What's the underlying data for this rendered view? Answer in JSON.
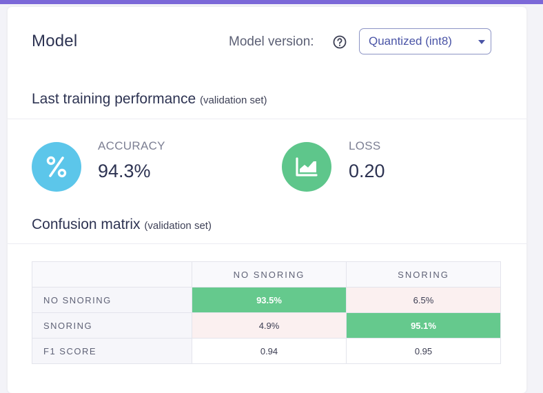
{
  "header": {
    "title": "Model",
    "version_label": "Model version:",
    "version_value": "Quantized (int8)"
  },
  "performance": {
    "title": "Last training performance",
    "subtitle": "(validation set)",
    "accuracy": {
      "label": "ACCURACY",
      "value": "94.3%",
      "icon": "percent-icon",
      "color": "#5cc6ea"
    },
    "loss": {
      "label": "LOSS",
      "value": "0.20",
      "icon": "chart-trend-icon",
      "color": "#5ec68b"
    }
  },
  "confusion": {
    "title": "Confusion matrix",
    "subtitle": "(validation set)",
    "columns": [
      "NO SNORING",
      "SNORING"
    ],
    "rows": [
      {
        "label": "NO SNORING",
        "cells": [
          "93.5%",
          "6.5%"
        ]
      },
      {
        "label": "SNORING",
        "cells": [
          "4.9%",
          "95.1%"
        ]
      },
      {
        "label": "F1 SCORE",
        "cells": [
          "0.94",
          "0.95"
        ]
      }
    ]
  },
  "colors": {
    "accent": "#7b68d8",
    "correct": "#65c98d",
    "error": "#fbf0f0"
  }
}
